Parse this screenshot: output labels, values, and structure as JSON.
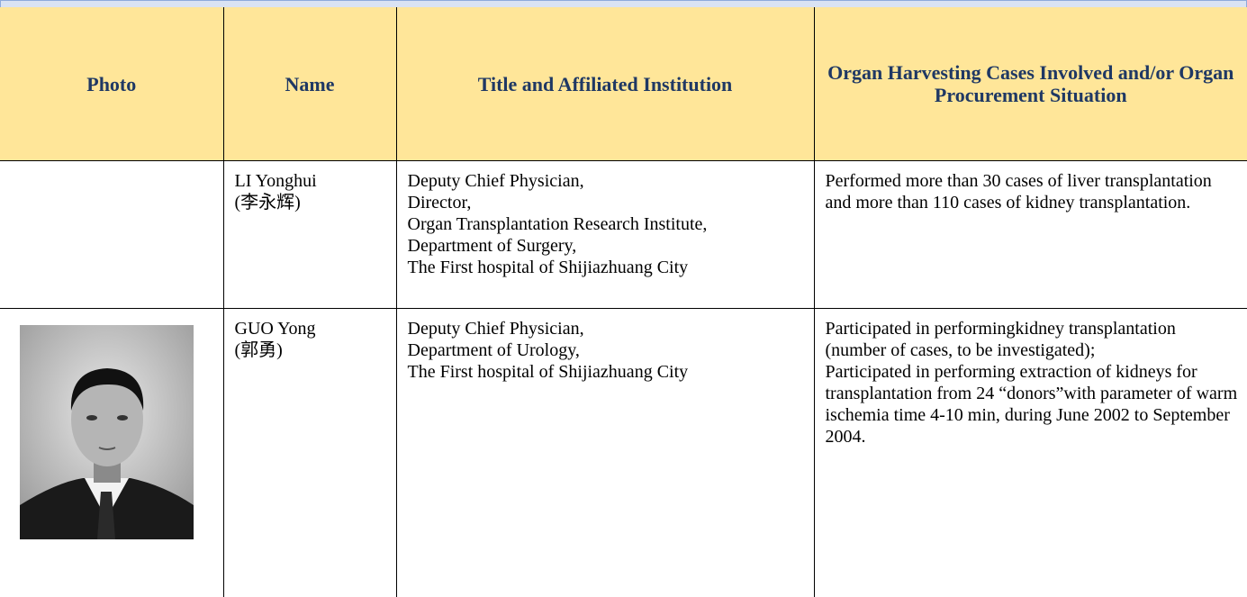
{
  "header": {
    "photo": "Photo",
    "name": "Name",
    "title": "Title and Affiliated Institution",
    "cases": "Organ Harvesting Cases Involved and/or Organ Procurement Situation"
  },
  "rows": [
    {
      "name": "LI Yonghui",
      "chinese_name": "(李永辉)",
      "title_lines": [
        "Deputy Chief Physician,",
        "Director,",
        "Organ Transplantation Research Institute,",
        "Department of Surgery,",
        "The First hospital of Shijiazhuang City"
      ],
      "cases": [
        "Performed more than 30 cases of liver transplantation and more than 110 cases of kidney transplantation."
      ]
    },
    {
      "name": "GUO Yong",
      "chinese_name": "(郭勇)",
      "title_lines": [
        "Deputy Chief Physician,",
        "Department of Urology,",
        "The First hospital of Shijiazhuang City"
      ],
      "cases": [
        "Participated in performingkidney transplantation (number of cases, to be investigated);",
        "Participated in performing extraction of kidneys for transplantation from 24 “donors”with parameter of warm ischemia time 4-10 min, during June 2002 to September 2004."
      ]
    }
  ]
}
